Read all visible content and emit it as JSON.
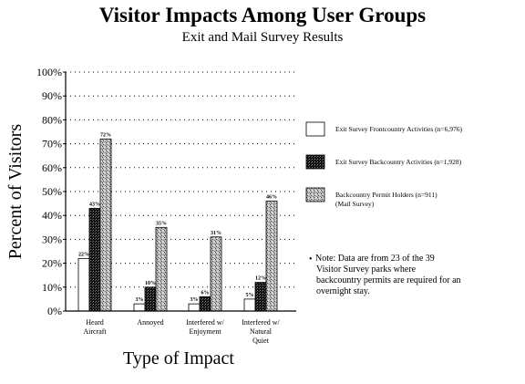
{
  "chart_data": {
    "type": "bar",
    "title": "Visitor Impacts Among User Groups",
    "subtitle": "Exit and Mail Survey Results",
    "xlabel": "Type of Impact",
    "ylabel": "Percent of Visitors",
    "ylim": [
      0,
      100
    ],
    "yticks": [
      "0%",
      "10%",
      "20%",
      "30%",
      "40%",
      "50%",
      "60%",
      "70%",
      "80%",
      "90%",
      "100%"
    ],
    "grid": true,
    "categories": [
      [
        "Heard",
        "Aircraft"
      ],
      [
        "Annoyed"
      ],
      [
        "Interfered w/",
        "Enjoyment"
      ],
      [
        "Interfered w/",
        "Natural",
        "Quiet"
      ]
    ],
    "series": [
      {
        "name": "Exit Survey Frontcountry Activities (n=6,976)",
        "values": [
          22,
          3,
          3,
          5
        ],
        "labels": [
          "22%",
          "3%",
          "3%",
          "5%"
        ]
      },
      {
        "name": "Exit Survey Backcountry Activities (n=1,928)",
        "values": [
          43,
          10,
          6,
          12
        ],
        "labels": [
          "43%",
          "10%",
          "6%",
          "12%"
        ]
      },
      {
        "name": "Backcountry Permit Holders (n=911)",
        "name2": "(Mail Survey)",
        "values": [
          72,
          35,
          31,
          46
        ],
        "labels": [
          "72%",
          "35%",
          "31%",
          "46%"
        ]
      }
    ],
    "legend_position": "right"
  },
  "note": {
    "bullet": "•",
    "lines": [
      "Note:  Data are from 23 of the 39",
      "Visitor Survey parks where",
      "backcountry permits are required for an",
      "overnight stay."
    ]
  }
}
